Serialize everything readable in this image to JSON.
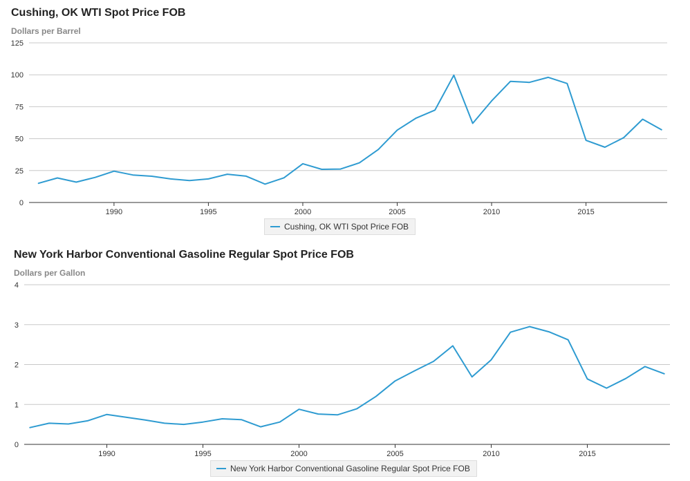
{
  "chart_data": [
    {
      "type": "line",
      "title": "Cushing, OK WTI Spot Price FOB",
      "ylabel": "Dollars per Barrel",
      "xlabel": "",
      "x": [
        1986,
        1987,
        1988,
        1989,
        1990,
        1991,
        1992,
        1993,
        1994,
        1995,
        1996,
        1997,
        1998,
        1999,
        2000,
        2001,
        2002,
        2003,
        2004,
        2005,
        2006,
        2007,
        2008,
        2009,
        2010,
        2011,
        2012,
        2013,
        2014,
        2015,
        2016,
        2017,
        2018,
        2019
      ],
      "series": [
        {
          "name": "Cushing, OK WTI Spot Price FOB",
          "color": "#2e9bd1",
          "values": [
            15.05,
            19.2,
            15.97,
            19.64,
            24.53,
            21.54,
            20.58,
            18.43,
            17.2,
            18.43,
            22.12,
            20.61,
            14.42,
            19.34,
            30.38,
            25.98,
            26.18,
            31.08,
            41.51,
            56.64,
            66.05,
            72.34,
            99.67,
            61.95,
            79.48,
            94.88,
            94.05,
            97.98,
            93.17,
            48.66,
            43.29,
            50.8,
            65.23,
            56.99
          ]
        }
      ],
      "xticks": [
        1990,
        1995,
        2000,
        2005,
        2010,
        2015
      ],
      "yticks": [
        0,
        25,
        50,
        75,
        100,
        125
      ],
      "xlim": [
        1985.5,
        2019.3
      ],
      "ylim": [
        0,
        125
      ],
      "grid": true,
      "legend_position": "bottom"
    },
    {
      "type": "line",
      "title": "New York Harbor Conventional Gasoline Regular Spot Price FOB",
      "ylabel": "Dollars per Gallon",
      "xlabel": "",
      "x": [
        1986,
        1987,
        1988,
        1989,
        1990,
        1991,
        1992,
        1993,
        1994,
        1995,
        1996,
        1997,
        1998,
        1999,
        2000,
        2001,
        2002,
        2003,
        2004,
        2005,
        2006,
        2007,
        2008,
        2009,
        2010,
        2011,
        2012,
        2013,
        2014,
        2015,
        2016,
        2017,
        2018,
        2019
      ],
      "series": [
        {
          "name": "New York Harbor Conventional Gasoline Regular Spot Price FOB",
          "color": "#2e9bd1",
          "values": [
            0.42,
            0.53,
            0.51,
            0.59,
            0.75,
            0.68,
            0.61,
            0.53,
            0.5,
            0.56,
            0.64,
            0.62,
            0.44,
            0.56,
            0.88,
            0.76,
            0.74,
            0.89,
            1.2,
            1.59,
            1.84,
            2.08,
            2.47,
            1.69,
            2.12,
            2.81,
            2.95,
            2.82,
            2.62,
            1.64,
            1.41,
            1.65,
            1.95,
            1.77
          ]
        }
      ],
      "xticks": [
        1990,
        1995,
        2000,
        2005,
        2010,
        2015
      ],
      "yticks": [
        0,
        1,
        2,
        3,
        4
      ],
      "xlim": [
        1985.7,
        2019.3
      ],
      "ylim": [
        0,
        4
      ],
      "grid": true,
      "legend_position": "bottom"
    }
  ]
}
